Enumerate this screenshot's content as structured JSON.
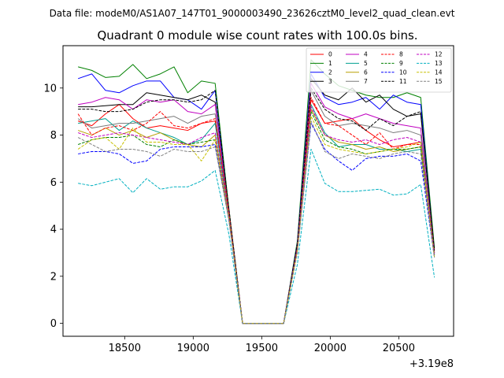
{
  "chart_data": {
    "type": "line",
    "suptitle": "Data file: modeM0/AS1A07_147T01_9000003490_23626cztM0_level2_quad_clean.evt",
    "title": "Quadrant 0 module wise count rates with 100.0s bins.",
    "xlabel": "",
    "ylabel": "",
    "x_offset_label": "+3.19e8",
    "xlim": [
      18050,
      20900
    ],
    "ylim": [
      -0.55,
      11.8
    ],
    "x_ticks": [
      18500,
      19000,
      19500,
      20000,
      20500
    ],
    "y_ticks": [
      0,
      2,
      4,
      6,
      8,
      10
    ],
    "legend_location": "upper right",
    "x": [
      18160,
      18260,
      18360,
      18460,
      18560,
      18660,
      18760,
      18860,
      18960,
      19060,
      19160,
      19260,
      19360,
      19460,
      19560,
      19660,
      19760,
      19860,
      19960,
      20060,
      20160,
      20260,
      20360,
      20460,
      20560,
      20660,
      20760
    ],
    "series": [
      {
        "name": "0",
        "color": "#ff0000",
        "dash": "solid",
        "values": [
          8.6,
          8.4,
          8.9,
          9.3,
          8.7,
          8.3,
          8.4,
          8.3,
          8.2,
          8.5,
          8.6,
          4.8,
          0,
          0,
          0,
          0,
          3.3,
          9.5,
          8.5,
          8.6,
          8.7,
          8.2,
          7.8,
          7.5,
          7.6,
          7.7,
          3.1
        ]
      },
      {
        "name": "1",
        "color": "#008000",
        "dash": "solid",
        "values": [
          10.9,
          10.75,
          10.45,
          10.5,
          11.0,
          10.4,
          10.6,
          10.9,
          9.8,
          10.3,
          10.2,
          4.9,
          0,
          0,
          0,
          0,
          3.5,
          11.2,
          10.6,
          10.1,
          9.9,
          9.7,
          9.6,
          9.6,
          9.8,
          9.6,
          3.2
        ]
      },
      {
        "name": "2",
        "color": "#0000ff",
        "dash": "solid",
        "values": [
          10.4,
          10.6,
          9.9,
          9.8,
          10.1,
          10.3,
          10.3,
          9.6,
          9.5,
          9.1,
          9.9,
          4.7,
          0,
          0,
          0,
          0,
          3.4,
          10.6,
          9.6,
          9.3,
          9.4,
          9.6,
          9.1,
          9.7,
          9.4,
          9.3,
          3.0
        ]
      },
      {
        "name": "3",
        "color": "#000000",
        "dash": "solid",
        "values": [
          9.2,
          9.2,
          9.25,
          9.3,
          9.3,
          9.8,
          9.7,
          9.6,
          9.5,
          9.7,
          9.4,
          4.8,
          0,
          0,
          0,
          0,
          3.3,
          10.4,
          9.7,
          9.5,
          10.0,
          9.4,
          9.7,
          9.1,
          8.8,
          8.9,
          3.1
        ]
      },
      {
        "name": "4",
        "color": "#c000c0",
        "dash": "solid",
        "values": [
          9.3,
          9.4,
          9.6,
          9.5,
          9.1,
          9.5,
          9.4,
          9.5,
          9.0,
          8.9,
          9.3,
          4.7,
          0,
          0,
          0,
          0,
          3.3,
          10.2,
          9.2,
          8.9,
          8.7,
          8.9,
          8.7,
          8.5,
          8.4,
          8.3,
          3.0
        ]
      },
      {
        "name": "5",
        "color": "#00a090",
        "dash": "solid",
        "values": [
          8.5,
          8.6,
          8.7,
          8.2,
          8.6,
          8.3,
          8.1,
          7.9,
          7.6,
          7.8,
          8.5,
          4.6,
          0,
          0,
          0,
          0,
          3.2,
          9.3,
          8.1,
          7.5,
          7.6,
          7.6,
          7.4,
          7.4,
          7.3,
          7.4,
          2.9
        ]
      },
      {
        "name": "6",
        "color": "#b8a000",
        "dash": "solid",
        "values": [
          8.2,
          8.0,
          8.3,
          8.0,
          8.2,
          7.9,
          8.1,
          7.8,
          7.6,
          7.5,
          8.0,
          4.5,
          0,
          0,
          0,
          0,
          3.2,
          9.1,
          8.0,
          7.7,
          7.6,
          7.4,
          7.5,
          7.3,
          7.4,
          7.5,
          2.9
        ]
      },
      {
        "name": "7",
        "color": "#7a7a7a",
        "dash": "solid",
        "values": [
          8.7,
          8.3,
          8.4,
          8.5,
          8.5,
          8.6,
          8.7,
          8.8,
          8.5,
          8.8,
          8.9,
          4.7,
          0,
          0,
          0,
          0,
          3.3,
          9.9,
          8.8,
          8.4,
          8.5,
          8.4,
          8.3,
          8.1,
          8.2,
          8.0,
          3.0
        ]
      },
      {
        "name": "8",
        "color": "#ff0000",
        "dash": "dashed",
        "values": [
          8.9,
          8.0,
          8.3,
          8.4,
          8.2,
          8.5,
          9.0,
          8.4,
          8.3,
          8.5,
          8.7,
          4.8,
          0,
          0,
          0,
          0,
          3.3,
          9.6,
          8.5,
          8.4,
          8.0,
          7.6,
          8.1,
          7.4,
          7.6,
          7.6,
          3.0
        ]
      },
      {
        "name": "9",
        "color": "#008000",
        "dash": "dashed",
        "values": [
          7.6,
          7.8,
          7.9,
          7.9,
          8.0,
          7.6,
          7.5,
          7.8,
          7.6,
          7.7,
          7.8,
          4.5,
          0,
          0,
          0,
          0,
          3.2,
          9.0,
          7.8,
          7.5,
          7.4,
          7.2,
          7.3,
          7.4,
          7.4,
          7.5,
          2.9
        ]
      },
      {
        "name": "10",
        "color": "#0000ff",
        "dash": "dashed",
        "values": [
          7.2,
          7.3,
          7.3,
          7.2,
          6.8,
          6.9,
          7.4,
          7.5,
          7.5,
          7.5,
          7.6,
          4.4,
          0,
          0,
          0,
          0,
          3.1,
          8.5,
          7.4,
          6.9,
          6.5,
          7.0,
          7.1,
          7.1,
          7.2,
          6.9,
          2.8
        ]
      },
      {
        "name": "11",
        "color": "#000000",
        "dash": "dashed",
        "values": [
          9.1,
          9.1,
          9.0,
          9.0,
          9.1,
          9.4,
          9.5,
          9.5,
          9.4,
          9.5,
          9.9,
          4.9,
          0,
          0,
          0,
          0,
          3.4,
          10.0,
          9.1,
          8.7,
          8.6,
          8.2,
          8.7,
          8.4,
          8.8,
          9.0,
          3.1
        ]
      },
      {
        "name": "12",
        "color": "#c000c0",
        "dash": "dashed",
        "values": [
          8.1,
          7.9,
          8.0,
          8.1,
          8.0,
          7.9,
          7.8,
          7.7,
          7.6,
          7.9,
          8.1,
          4.6,
          0,
          0,
          0,
          0,
          3.2,
          9.2,
          8.0,
          7.8,
          7.7,
          7.8,
          7.6,
          7.8,
          7.9,
          7.7,
          2.9
        ]
      },
      {
        "name": "13",
        "color": "#00b0c0",
        "dash": "dashed",
        "values": [
          5.95,
          5.85,
          6.0,
          6.15,
          5.55,
          6.15,
          5.7,
          5.8,
          5.8,
          6.05,
          6.5,
          3.8,
          0,
          0,
          0,
          0,
          2.5,
          7.4,
          5.95,
          5.6,
          5.6,
          5.65,
          5.7,
          5.45,
          5.5,
          5.9,
          1.95
        ]
      },
      {
        "name": "14",
        "color": "#c8c000",
        "dash": "dashed",
        "values": [
          7.4,
          7.8,
          7.9,
          7.4,
          8.3,
          7.7,
          7.7,
          7.6,
          7.6,
          6.9,
          7.8,
          4.5,
          0,
          0,
          0,
          0,
          3.1,
          8.8,
          7.6,
          7.4,
          7.3,
          7.2,
          7.3,
          7.4,
          7.5,
          7.7,
          2.8
        ]
      },
      {
        "name": "15",
        "color": "#808080",
        "dash": "dashed",
        "values": [
          7.9,
          7.6,
          7.3,
          7.4,
          7.4,
          7.3,
          7.1,
          7.4,
          7.3,
          7.3,
          7.5,
          4.4,
          0,
          0,
          0,
          0,
          3.0,
          8.6,
          7.3,
          7.0,
          7.2,
          7.1,
          7.0,
          7.2,
          7.3,
          7.2,
          2.8
        ]
      }
    ]
  }
}
